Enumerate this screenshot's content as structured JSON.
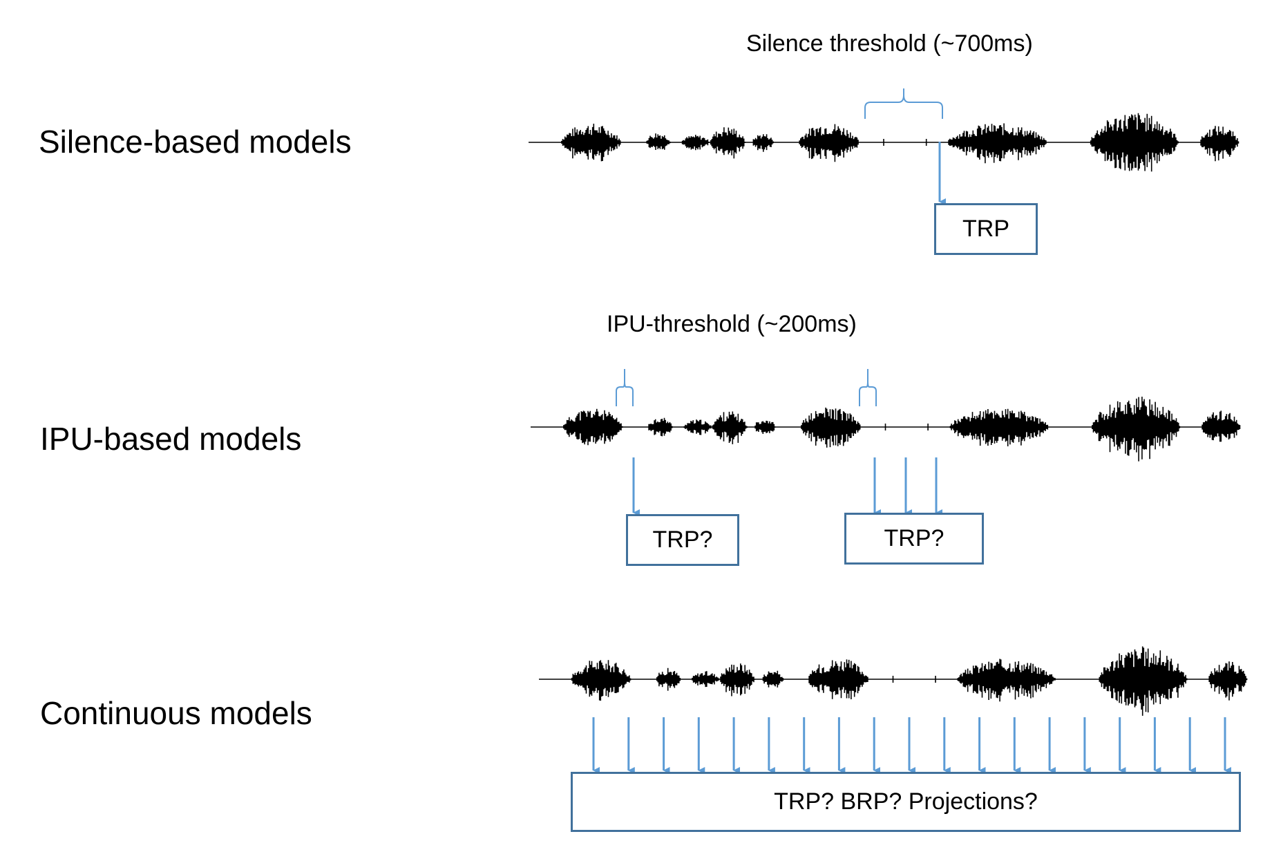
{
  "rows": [
    {
      "title": "Silence-based models",
      "threshold_label": "Silence threshold (~700ms)",
      "boxes": [
        {
          "label": "TRP"
        }
      ]
    },
    {
      "title": "IPU-based models",
      "threshold_label": "IPU-threshold (~200ms)",
      "boxes": [
        {
          "label": "TRP?"
        },
        {
          "label": "TRP?"
        }
      ]
    },
    {
      "title": "Continuous models",
      "boxes": [
        {
          "label": "TRP? BRP? Projections?"
        }
      ]
    }
  ],
  "colors": {
    "accent": "#5B9BD5",
    "box_border": "#41719C",
    "waveform": "#000000",
    "text": "#000000"
  }
}
